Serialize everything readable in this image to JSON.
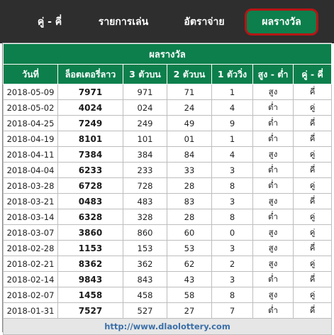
{
  "tabs": [
    {
      "label": "คู่ - คี่"
    },
    {
      "label": "รายการเล่น"
    },
    {
      "label": "อัตราจ่าย"
    },
    {
      "label": "ผลรางวัล"
    }
  ],
  "table": {
    "caption": "ผลรางวัล",
    "headers": [
      "วันที่",
      "ล็อตเตอรี่ลาว",
      "3 ตัวบน",
      "2 ตัวบน",
      "1 ตัววิ่ง",
      "สูง - ต่ำ",
      "คู่ - คี่"
    ],
    "rows": [
      [
        "2018-05-09",
        "7971",
        "971",
        "71",
        "1",
        "สูง",
        "คี่"
      ],
      [
        "2018-05-02",
        "4024",
        "024",
        "24",
        "4",
        "ต่ำ",
        "คู่"
      ],
      [
        "2018-04-25",
        "7249",
        "249",
        "49",
        "9",
        "ต่ำ",
        "คี่"
      ],
      [
        "2018-04-19",
        "8101",
        "101",
        "01",
        "1",
        "ต่ำ",
        "คี่"
      ],
      [
        "2018-04-11",
        "7384",
        "384",
        "84",
        "4",
        "สูง",
        "คู่"
      ],
      [
        "2018-04-04",
        "6233",
        "233",
        "33",
        "3",
        "ต่ำ",
        "คี่"
      ],
      [
        "2018-03-28",
        "6728",
        "728",
        "28",
        "8",
        "ต่ำ",
        "คู่"
      ],
      [
        "2018-03-21",
        "0483",
        "483",
        "83",
        "3",
        "สูง",
        "คี่"
      ],
      [
        "2018-03-14",
        "6328",
        "328",
        "28",
        "8",
        "ต่ำ",
        "คู่"
      ],
      [
        "2018-03-07",
        "3860",
        "860",
        "60",
        "0",
        "สูง",
        "คู่"
      ],
      [
        "2018-02-28",
        "1153",
        "153",
        "53",
        "3",
        "สูง",
        "คี่"
      ],
      [
        "2018-02-21",
        "8362",
        "362",
        "62",
        "2",
        "สูง",
        "คู่"
      ],
      [
        "2018-02-14",
        "9843",
        "843",
        "43",
        "3",
        "ต่ำ",
        "คี่"
      ],
      [
        "2018-02-07",
        "1458",
        "458",
        "58",
        "8",
        "สูง",
        "คู่"
      ],
      [
        "2018-01-31",
        "7527",
        "527",
        "27",
        "7",
        "ต่ำ",
        "คี่"
      ]
    ],
    "footer_link": "http://www.dlaolottery.com"
  }
}
